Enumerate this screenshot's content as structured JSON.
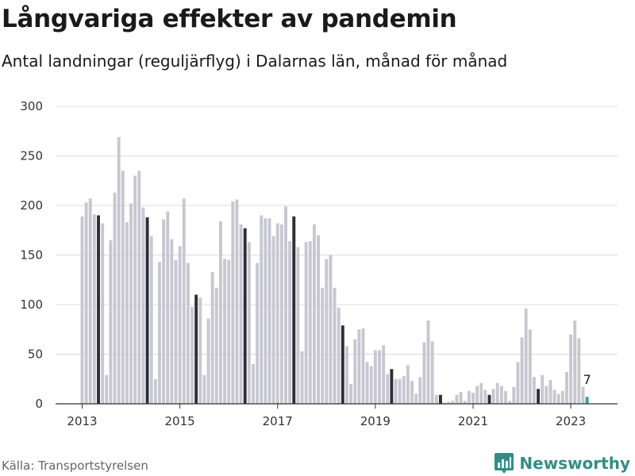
{
  "title": "Långvariga effekter av pandemin",
  "subtitle": "Antal landningar (reguljärflyg) i Dalarnas län, månad för månad",
  "source": "Källa: Transportstyrelsen",
  "brand": "Newsworthy",
  "colors": {
    "bar": "#c8c7d1",
    "bar_highlight": "#2e2e38",
    "bar_latest": "#2aa5a0",
    "grid": "#dddddd",
    "axis": "#333333",
    "brand": "#2e8f88"
  },
  "chart_data": {
    "type": "bar",
    "start": "2013-01",
    "frequency": "monthly",
    "ylim": [
      0,
      300
    ],
    "y_ticks": [
      0,
      50,
      100,
      150,
      200,
      250,
      300
    ],
    "x_tick_labels": [
      "2013",
      "2015",
      "2017",
      "2019",
      "2021",
      "2023"
    ],
    "highlight": "May of each year",
    "latest_label": "7",
    "values": [
      189,
      203,
      207,
      191,
      190,
      182,
      29,
      165,
      213,
      269,
      235,
      183,
      202,
      230,
      235,
      198,
      188,
      169,
      25,
      143,
      186,
      194,
      166,
      145,
      159,
      207,
      142,
      98,
      110,
      107,
      29,
      86,
      133,
      117,
      184,
      146,
      145,
      204,
      206,
      181,
      177,
      163,
      40,
      142,
      190,
      187,
      187,
      169,
      182,
      181,
      199,
      164,
      189,
      158,
      53,
      163,
      164,
      181,
      170,
      117,
      146,
      150,
      117,
      97,
      79,
      58,
      20,
      65,
      75,
      76,
      42,
      38,
      54,
      54,
      59,
      30,
      35,
      25,
      25,
      28,
      39,
      23,
      10,
      27,
      62,
      84,
      63,
      9,
      9,
      1,
      2,
      3,
      9,
      12,
      3,
      13,
      11,
      18,
      21,
      14,
      9,
      15,
      21,
      18,
      13,
      3,
      17,
      42,
      67,
      96,
      75,
      27,
      15,
      29,
      18,
      24,
      14,
      10,
      13,
      32,
      70,
      84,
      66,
      17,
      7
    ]
  }
}
